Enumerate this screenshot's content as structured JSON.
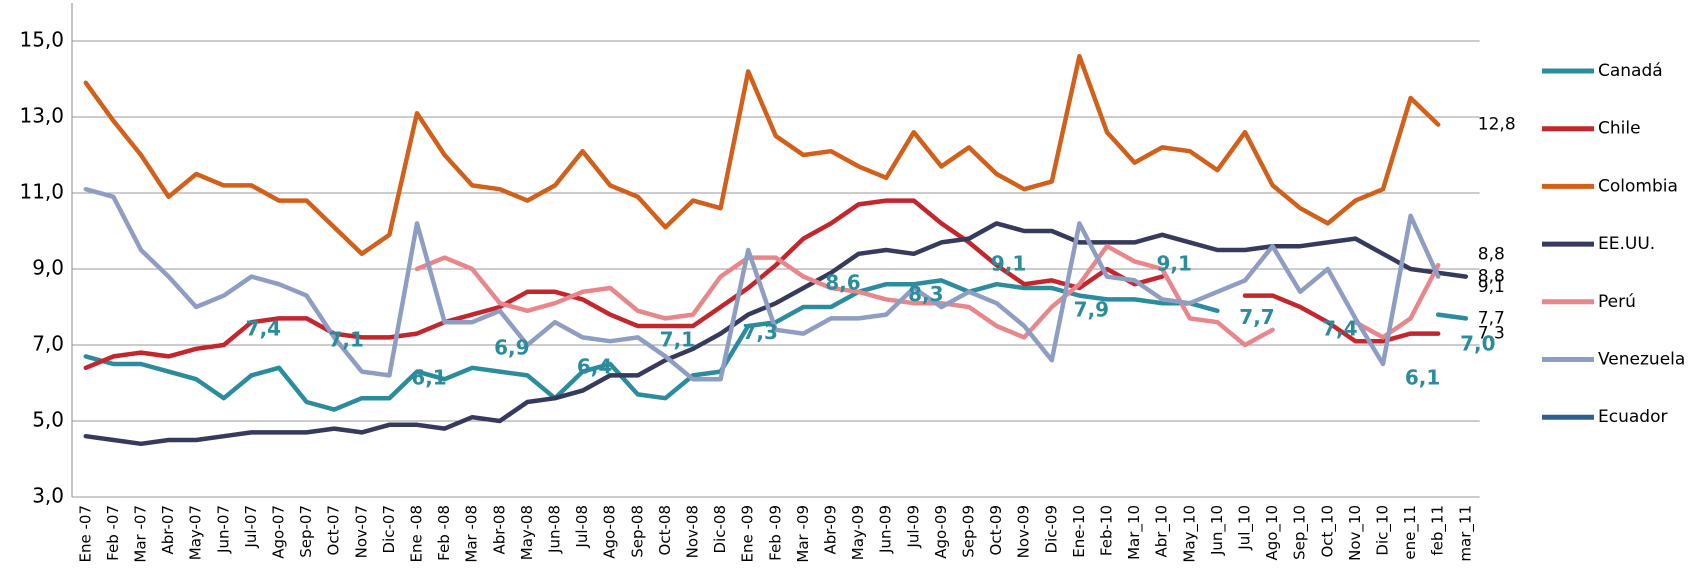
{
  "chart_data": {
    "type": "line",
    "categories": [
      "Ene -07",
      "Feb -07",
      "Mar -07",
      "Abr-07",
      "May-07",
      "Jun-07",
      "Jul-07",
      "Ago-07",
      "Sep-07",
      "Oct-07",
      "Nov-07",
      "Dic-07",
      "Ene -08",
      "Feb -08",
      "Mar -08",
      "Abr-08",
      "May-08",
      "Jun-08",
      "Jul-08",
      "Ago-08",
      "Sep-08",
      "Oct-08",
      "Nov-08",
      "Dic-08",
      "Ene -09",
      "Feb -09",
      "Mar -09",
      "Abr-09",
      "May-09",
      "Jun-09",
      "Jul-09",
      "Ago-09",
      "Sep-09",
      "Oct-09",
      "Nov-09",
      "Dic-09",
      "Ene-10",
      "Feb-10",
      "Mar_10",
      "Abr_10",
      "May_10",
      "Jun_10",
      "Jul_10",
      "Ago_10",
      "Sep_10",
      "Oct_10",
      "Nov_10",
      "Dic_10",
      "ene_11",
      "feb_11",
      "mar_11"
    ],
    "series": [
      {
        "name": "Canadá",
        "color": "#2b8c9e",
        "values": [
          6.7,
          6.5,
          6.5,
          6.3,
          6.1,
          5.6,
          6.2,
          6.4,
          5.5,
          5.3,
          5.6,
          5.6,
          6.3,
          6.1,
          6.4,
          6.3,
          6.2,
          5.6,
          6.3,
          6.5,
          5.7,
          5.6,
          6.2,
          6.3,
          7.5,
          7.6,
          8.0,
          8.0,
          8.4,
          8.6,
          8.6,
          8.7,
          8.4,
          8.6,
          8.5,
          8.5,
          8.3,
          8.2,
          8.2,
          8.1,
          8.1,
          7.9,
          null,
          null,
          null,
          null,
          null,
          null,
          null,
          7.8,
          7.7
        ],
        "value_labels": [
          null,
          null,
          null,
          null,
          null,
          null,
          null,
          null,
          null,
          null,
          null,
          null,
          null,
          null,
          null,
          null,
          null,
          null,
          null,
          null,
          null,
          null,
          null,
          null,
          null,
          null,
          null,
          null,
          null,
          null,
          null,
          null,
          null,
          null,
          null,
          null,
          null,
          null,
          null,
          null,
          null,
          null,
          null,
          null,
          null,
          null,
          null,
          null,
          null,
          null,
          "7,7"
        ]
      },
      {
        "name": "Chile",
        "color": "#c4262e",
        "values": [
          6.4,
          6.7,
          6.8,
          6.7,
          6.9,
          7.0,
          7.6,
          7.7,
          7.7,
          7.3,
          7.2,
          7.2,
          7.3,
          7.6,
          7.8,
          8.0,
          8.4,
          8.4,
          8.2,
          7.8,
          7.5,
          7.5,
          7.5,
          8.0,
          8.5,
          9.1,
          9.8,
          10.2,
          10.7,
          10.8,
          10.8,
          10.2,
          9.7,
          9.1,
          8.6,
          8.7,
          8.5,
          9.0,
          8.6,
          8.8,
          null,
          null,
          8.3,
          8.3,
          8.0,
          7.6,
          7.1,
          7.1,
          7.3,
          7.3,
          null
        ],
        "value_labels": [
          null,
          null,
          null,
          null,
          null,
          null,
          null,
          null,
          null,
          null,
          null,
          null,
          null,
          null,
          null,
          null,
          null,
          null,
          null,
          null,
          null,
          null,
          null,
          null,
          null,
          null,
          null,
          null,
          null,
          null,
          null,
          null,
          null,
          null,
          null,
          null,
          null,
          null,
          null,
          null,
          null,
          null,
          null,
          null,
          null,
          null,
          null,
          null,
          null,
          "7,3",
          null
        ]
      },
      {
        "name": "Colombia",
        "color": "#d2601a",
        "values": [
          13.9,
          12.9,
          12.0,
          10.9,
          11.5,
          11.2,
          11.2,
          10.8,
          10.8,
          10.1,
          9.4,
          9.9,
          13.1,
          12.0,
          11.2,
          11.1,
          10.8,
          11.2,
          12.1,
          11.2,
          10.9,
          10.1,
          10.8,
          10.6,
          14.2,
          12.5,
          12.0,
          12.1,
          11.7,
          11.4,
          12.6,
          11.7,
          12.2,
          11.5,
          11.1,
          11.3,
          14.6,
          12.6,
          11.8,
          12.2,
          12.1,
          11.6,
          12.6,
          11.2,
          10.6,
          10.2,
          10.8,
          11.1,
          13.5,
          12.8,
          null
        ],
        "value_labels": [
          null,
          null,
          null,
          null,
          null,
          null,
          null,
          null,
          null,
          null,
          null,
          null,
          null,
          null,
          null,
          null,
          null,
          null,
          null,
          null,
          null,
          null,
          null,
          null,
          null,
          null,
          null,
          null,
          null,
          null,
          null,
          null,
          null,
          null,
          null,
          null,
          null,
          null,
          null,
          null,
          null,
          null,
          null,
          null,
          null,
          null,
          null,
          null,
          null,
          "12,8",
          null
        ]
      },
      {
        "name": "EE.UU.",
        "color": "#363a5c",
        "values": [
          4.6,
          4.5,
          4.4,
          4.5,
          4.5,
          4.6,
          4.7,
          4.7,
          4.7,
          4.8,
          4.7,
          4.9,
          4.9,
          4.8,
          5.1,
          5.0,
          5.5,
          5.6,
          5.8,
          6.2,
          6.2,
          6.6,
          6.9,
          7.3,
          7.8,
          8.1,
          8.5,
          8.9,
          9.4,
          9.5,
          9.4,
          9.7,
          9.8,
          10.2,
          10.0,
          10.0,
          9.7,
          9.7,
          9.7,
          9.9,
          9.7,
          9.5,
          9.5,
          9.6,
          9.6,
          9.7,
          9.8,
          9.4,
          9.0,
          8.9,
          8.8
        ],
        "value_labels": [
          null,
          null,
          null,
          null,
          null,
          null,
          null,
          null,
          null,
          null,
          null,
          null,
          null,
          null,
          null,
          null,
          null,
          null,
          null,
          null,
          null,
          null,
          null,
          null,
          null,
          null,
          null,
          null,
          null,
          null,
          null,
          null,
          null,
          null,
          null,
          null,
          null,
          null,
          null,
          null,
          null,
          null,
          null,
          null,
          null,
          null,
          null,
          null,
          null,
          null,
          "8,8"
        ]
      },
      {
        "name": "Perú",
        "color": "#e8878b",
        "values": [
          null,
          null,
          null,
          null,
          null,
          null,
          null,
          null,
          null,
          null,
          null,
          null,
          9.0,
          9.3,
          9.0,
          8.1,
          7.9,
          8.1,
          8.4,
          8.5,
          7.9,
          7.7,
          7.8,
          8.8,
          9.3,
          9.3,
          8.8,
          8.5,
          8.4,
          8.2,
          8.1,
          8.1,
          8.0,
          7.5,
          7.2,
          8.0,
          8.6,
          9.6,
          9.2,
          9.0,
          7.7,
          7.6,
          7.0,
          7.4,
          null,
          null,
          7.6,
          7.2,
          7.7,
          9.1,
          null
        ],
        "value_labels": [
          null,
          null,
          null,
          null,
          null,
          null,
          null,
          null,
          null,
          null,
          null,
          null,
          null,
          null,
          null,
          null,
          null,
          null,
          null,
          null,
          null,
          null,
          null,
          null,
          null,
          null,
          null,
          null,
          null,
          null,
          null,
          null,
          null,
          null,
          null,
          null,
          null,
          null,
          null,
          null,
          null,
          null,
          null,
          null,
          null,
          null,
          null,
          null,
          null,
          "9,1",
          null
        ]
      },
      {
        "name": "Venezuela",
        "color": "#8e9dc2",
        "values": [
          11.1,
          10.9,
          9.5,
          8.8,
          8.0,
          8.3,
          8.8,
          8.6,
          8.3,
          7.2,
          6.3,
          6.2,
          10.2,
          7.6,
          7.6,
          7.9,
          7.0,
          7.6,
          7.2,
          7.1,
          7.2,
          6.7,
          6.1,
          6.1,
          9.5,
          7.4,
          7.3,
          7.7,
          7.7,
          7.8,
          8.5,
          8.0,
          8.4,
          8.1,
          7.5,
          6.6,
          10.2,
          8.8,
          8.7,
          8.2,
          8.1,
          8.4,
          8.7,
          9.6,
          8.4,
          9.0,
          7.7,
          6.5,
          10.4,
          8.8,
          null
        ],
        "value_labels": [
          null,
          null,
          null,
          null,
          null,
          null,
          null,
          null,
          null,
          null,
          null,
          null,
          null,
          null,
          null,
          null,
          null,
          null,
          null,
          null,
          null,
          null,
          null,
          null,
          null,
          null,
          null,
          null,
          null,
          null,
          null,
          null,
          null,
          null,
          null,
          null,
          null,
          null,
          null,
          null,
          null,
          null,
          null,
          null,
          null,
          null,
          null,
          null,
          null,
          "8,8",
          null
        ]
      },
      {
        "name": "Ecuador",
        "color": "#2f5f8e",
        "value_label_color": "#2b8c9e",
        "values": [
          null,
          null,
          null,
          null,
          null,
          null,
          7.4,
          null,
          null,
          7.1,
          null,
          null,
          6.1,
          null,
          null,
          6.9,
          null,
          null,
          6.4,
          null,
          null,
          7.1,
          null,
          null,
          7.3,
          null,
          null,
          8.6,
          null,
          null,
          8.3,
          null,
          null,
          9.1,
          null,
          null,
          7.9,
          null,
          null,
          9.1,
          null,
          null,
          7.7,
          null,
          null,
          7.4,
          null,
          null,
          6.1,
          null,
          7.0
        ],
        "value_labels": [
          null,
          null,
          null,
          null,
          null,
          null,
          "7,4",
          null,
          null,
          "7,1",
          null,
          null,
          "6,1",
          null,
          null,
          "6,9",
          null,
          null,
          "6,4",
          null,
          null,
          "7,1",
          null,
          null,
          "7,3",
          null,
          null,
          "8,6",
          null,
          null,
          "8,3",
          null,
          null,
          "9,1",
          null,
          null,
          "7,9",
          null,
          null,
          "9,1",
          null,
          null,
          "7,7",
          null,
          null,
          "7,4",
          null,
          null,
          "6,1",
          null,
          "7,0"
        ]
      }
    ],
    "ylim": [
      3,
      16
    ],
    "yticks": [
      {
        "value": 3,
        "label": "3,0"
      },
      {
        "value": 5,
        "label": "5,0"
      },
      {
        "value": 7,
        "label": "7,0"
      },
      {
        "value": 9,
        "label": "9,0"
      },
      {
        "value": 11,
        "label": "11,0"
      },
      {
        "value": 13,
        "label": "13,0"
      },
      {
        "value": 15,
        "label": "15,0"
      }
    ],
    "grid": true,
    "legend": "right"
  }
}
